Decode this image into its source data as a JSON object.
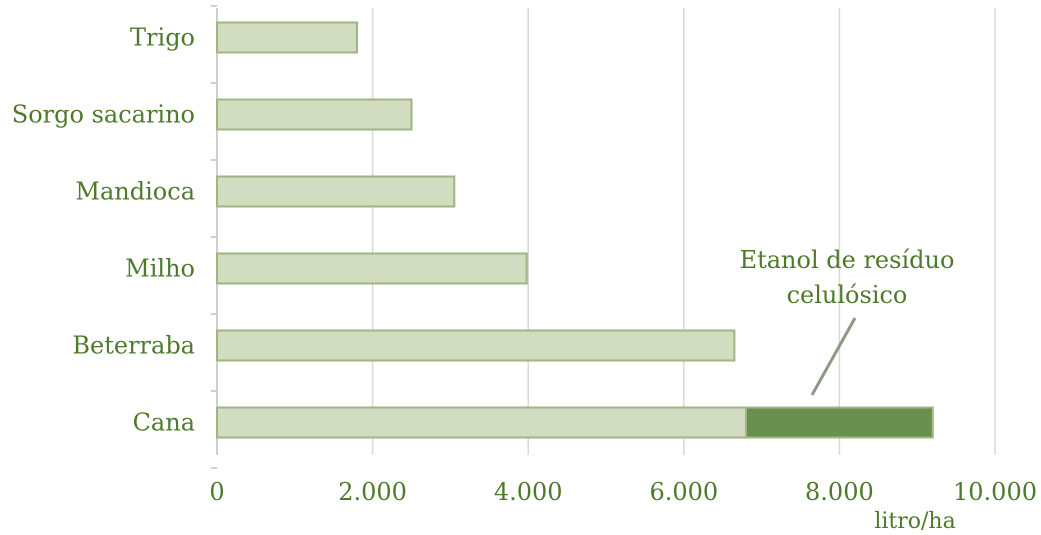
{
  "chart_data": {
    "type": "bar",
    "orientation": "horizontal",
    "stacked": true,
    "categories": [
      "Trigo",
      "Sorgo sacarino",
      "Mandioca",
      "Milho",
      "Beterraba",
      "Cana"
    ],
    "series": [
      {
        "values": [
          1800,
          2500,
          3050,
          3980,
          6650,
          6800
        ],
        "color": "#d1dcc0"
      },
      {
        "name": "Etanol de resíduo celulósico",
        "values": [
          0,
          0,
          0,
          0,
          0,
          2400
        ],
        "color": "#6b8f4e"
      }
    ],
    "xlim": [
      0,
      10000
    ],
    "xticks": [
      0,
      2000,
      4000,
      6000,
      8000,
      10000
    ],
    "xtick_labels": [
      "0",
      "2.000",
      "4.000",
      "6.000",
      "8.000",
      "10.000"
    ],
    "xlabel": "litro/ha",
    "annotation": {
      "lines": [
        "Etanol de resíduo",
        "celulósico"
      ]
    },
    "grid": "vertical",
    "border_color": "#9fb584",
    "text_color": "#4e7a2c"
  }
}
